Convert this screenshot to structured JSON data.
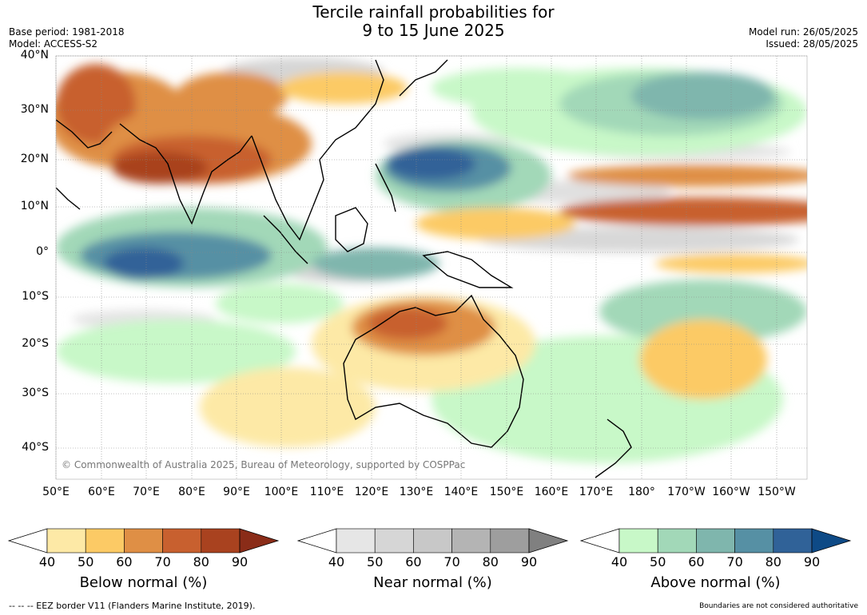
{
  "title_line1": "Tercile rainfall probabilities for",
  "title_line2": "9 to 15 June 2025",
  "base_period": "Base period: 1981-2018",
  "model": "Model: ACCESS-S2",
  "model_run": "Model run: 26/05/2025",
  "issued": "Issued: 28/05/2025",
  "lat_labels": [
    "40°N",
    "30°N",
    "20°N",
    "10°N",
    "0°",
    "10°S",
    "20°S",
    "30°S",
    "40°S"
  ],
  "lon_labels": [
    "50°E",
    "60°E",
    "70°E",
    "80°E",
    "90°E",
    "100°E",
    "110°E",
    "120°E",
    "130°E",
    "140°E",
    "150°E",
    "160°E",
    "170°E",
    "180°",
    "170°W",
    "160°W",
    "150°W"
  ],
  "copyright": "© Commonwealth of Australia 2025, Bureau of Meteorology, supported by COSPPac",
  "colorbars": [
    {
      "title": "Below normal (%)",
      "ticks": [
        "40",
        "50",
        "60",
        "70",
        "80",
        "90"
      ],
      "colors": [
        "#ffffff",
        "#fde9a6",
        "#fcca65",
        "#df8f45",
        "#c8602f",
        "#a9421f",
        "#8a2c18"
      ]
    },
    {
      "title": "Near normal (%)",
      "ticks": [
        "40",
        "50",
        "60",
        "70",
        "80",
        "90"
      ],
      "colors": [
        "#ffffff",
        "#e6e6e6",
        "#d6d6d6",
        "#c8c8c8",
        "#b4b4b4",
        "#9e9e9e",
        "#808080"
      ]
    },
    {
      "title": "Above normal (%)",
      "ticks": [
        "40",
        "50",
        "60",
        "70",
        "80",
        "90"
      ],
      "colors": [
        "#ffffff",
        "#c8f8c8",
        "#a2d8b8",
        "#7fb6ad",
        "#5690a4",
        "#306298",
        "#0e4a86"
      ]
    }
  ],
  "footer_left": "--  --  -- EEZ border V11 (Flanders Marine Institute, 2019).",
  "footer_right": "Boundaries are not considered authoritative"
}
